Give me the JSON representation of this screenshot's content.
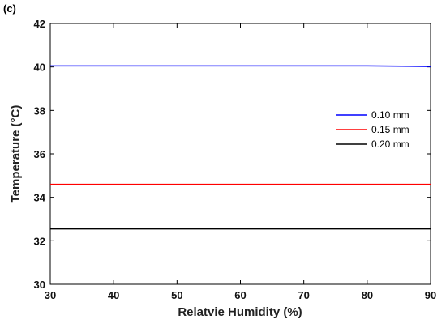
{
  "chart_data": {
    "type": "line",
    "panel_label": "(c)",
    "xlabel": "Relatvie Humidity (%)",
    "ylabel": "Temperature (°C)",
    "xlim": [
      30,
      90
    ],
    "ylim": [
      30,
      42
    ],
    "xticks": [
      30,
      40,
      50,
      60,
      70,
      80,
      90
    ],
    "yticks": [
      30,
      32,
      34,
      36,
      38,
      40,
      42
    ],
    "grid": false,
    "legend_position": "right",
    "x": [
      30,
      40,
      50,
      60,
      70,
      80,
      90
    ],
    "series": [
      {
        "name": "0.10 mm",
        "color": "#0000ff",
        "values": [
          40.05,
          40.05,
          40.05,
          40.05,
          40.05,
          40.05,
          40.02
        ]
      },
      {
        "name": "0.15 mm",
        "color": "#ff0000",
        "values": [
          34.6,
          34.6,
          34.6,
          34.6,
          34.6,
          34.6,
          34.6
        ]
      },
      {
        "name": "0.20 mm",
        "color": "#000000",
        "values": [
          32.55,
          32.55,
          32.55,
          32.55,
          32.55,
          32.55,
          32.55
        ]
      }
    ]
  }
}
